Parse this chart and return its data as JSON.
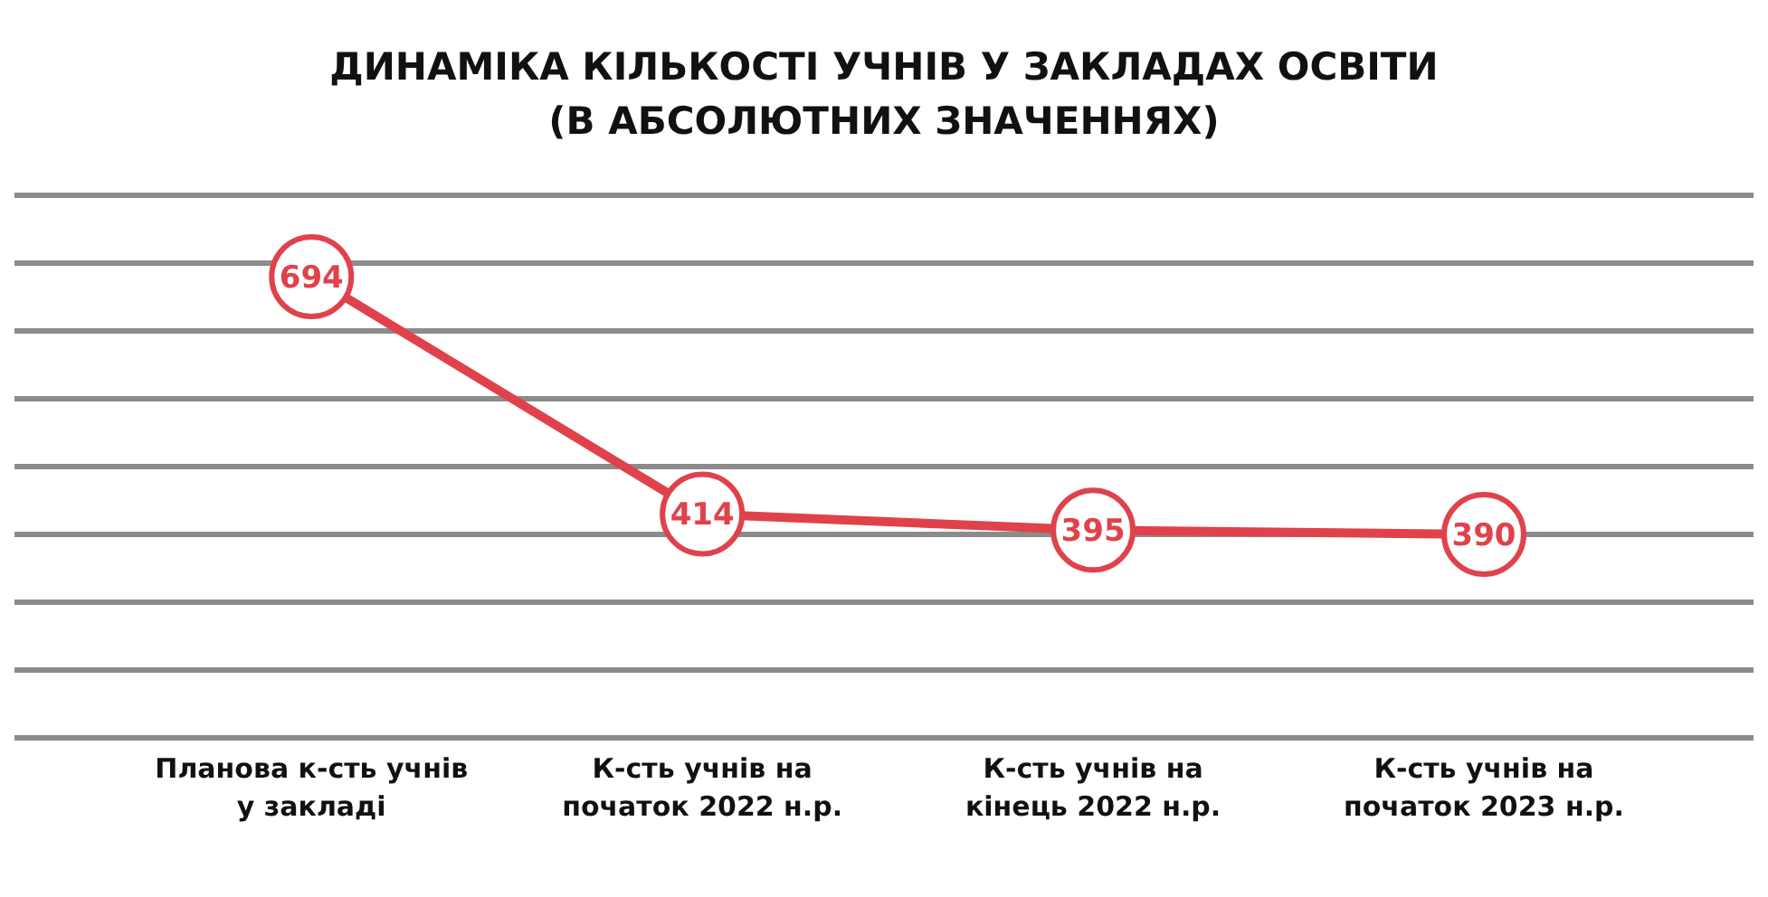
{
  "chart_data": {
    "type": "line",
    "title": "ДИНАМІКА КІЛЬКОСТІ УЧНІВ У ЗАКЛАДАХ ОСВІТИ\n(В АБСОЛЮТНИХ ЗНАЧЕННЯХ)",
    "categories": [
      "Планова к-сть учнів у закладі",
      "К-сть учнів на початок 2022 н.р.",
      "К-сть учнів на кінець 2022 н.р.",
      "К-сть учнів на початок 2023 н.р."
    ],
    "series": [
      {
        "color": "#e0424b",
        "values": [
          694,
          414,
          395,
          390
        ]
      }
    ],
    "ylim": [
      150,
      790
    ],
    "yticks": [
      {
        "value": 150,
        "label": null
      },
      {
        "value": 230,
        "label": null
      },
      {
        "value": 310,
        "label": null
      },
      {
        "value": 390,
        "label": null
      },
      {
        "value": 470,
        "label": null
      },
      {
        "value": 550,
        "label": null
      },
      {
        "value": 630,
        "label": null
      },
      {
        "value": 710,
        "label": null
      },
      {
        "value": 790,
        "label": null
      }
    ],
    "grid": "y",
    "tick_labels": "x",
    "marker": "circle",
    "data_labels": true,
    "line_style": "solid"
  }
}
